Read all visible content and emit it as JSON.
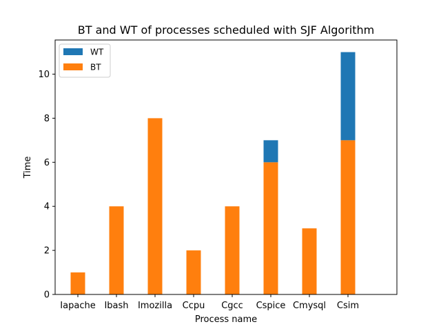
{
  "chart_data": {
    "type": "bar",
    "stacked": true,
    "title": "BT and WT of processes scheduled with SJF Algorithm",
    "xlabel": "Process name",
    "ylabel": "Time",
    "categories": [
      "Iapache",
      "Ibash",
      "Imozilla",
      "Ccpu",
      "Cgcc",
      "Cspice",
      "Cmysql",
      "Csim"
    ],
    "series": [
      {
        "name": "BT",
        "values": [
          1,
          4,
          8,
          2,
          4,
          6,
          3,
          7
        ],
        "color": "#ff7f0e"
      },
      {
        "name": "WT",
        "values": [
          0,
          0,
          0,
          0,
          0,
          1,
          0,
          4
        ],
        "color": "#1f77b4"
      }
    ],
    "yticks": [
      0,
      2,
      4,
      6,
      8,
      10
    ],
    "ylim": [
      0,
      11.55
    ],
    "grid": false,
    "legend": {
      "placement": "top-left",
      "order": [
        "WT",
        "BT"
      ]
    }
  }
}
